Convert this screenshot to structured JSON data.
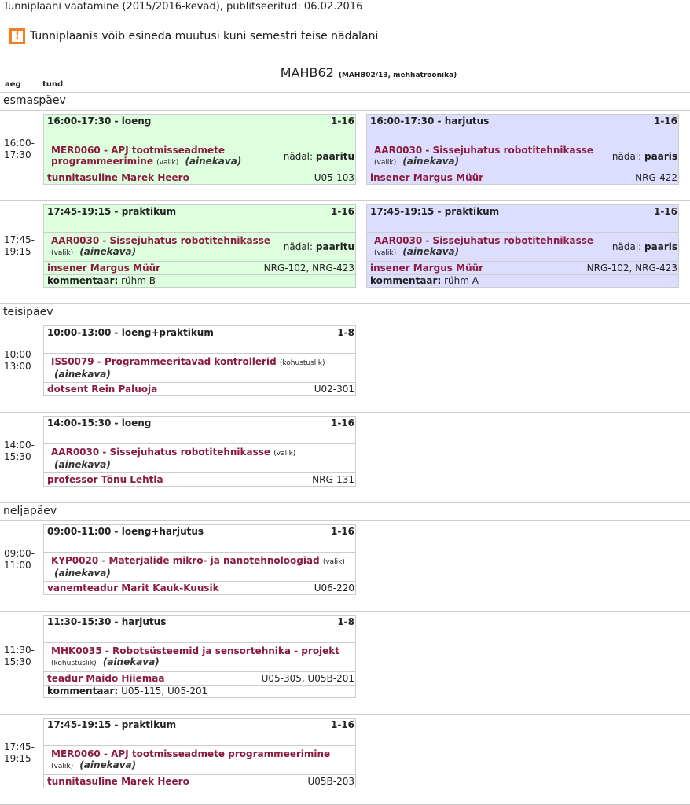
{
  "page_title": "Tunniplaani vaatamine (2015/2016-kevad), publitseeritud: 06.02.2016",
  "warning": {
    "icon": "exclamation-icon",
    "text": "Tunniplaanis võib esineda muutusi kuni semestri teise nädalani"
  },
  "group": {
    "code": "MAHB62",
    "detail": "(MAHB02/13, mehhatroonika)"
  },
  "columns": {
    "time": "aeg",
    "lesson": "tund"
  },
  "colors": {
    "green": "#ddffdd",
    "blue": "#ddddff",
    "link": "#8b1a3f",
    "warning": "#f57c1f"
  },
  "days": [
    {
      "name": "esmaspäev",
      "slots": [
        {
          "time": "16:00-17:30",
          "cards": [
            {
              "color": "green",
              "header": "16:00-17:30 -  loeng",
              "weeks": "1-16",
              "course": "MER0060 - APJ tootmisseadmete programmeerimine",
              "note": "(valik)",
              "aine": "(ainekava)",
              "week_label": "nädal:",
              "week_value": "paaritu",
              "teacher": "tunnitasuline Marek Heero",
              "rooms": "U05-103"
            },
            {
              "color": "blue",
              "header": "16:00-17:30 -  harjutus",
              "weeks": "1-16",
              "course": "AAR0030 - Sissejuhatus robotitehnikasse",
              "note": "(valik)",
              "aine": "(ainekava)",
              "week_label": "nädal:",
              "week_value": "paaris",
              "teacher": "insener Margus Müür",
              "rooms": "NRG-422"
            }
          ]
        },
        {
          "time": "17:45-19:15",
          "cards": [
            {
              "color": "green",
              "header": "17:45-19:15 -  praktikum",
              "weeks": "1-16",
              "course": "AAR0030 - Sissejuhatus robotitehnikasse",
              "note": "(valik)",
              "aine": "(ainekava)",
              "week_label": "nädal:",
              "week_value": "paaritu",
              "teacher": "insener Margus Müür",
              "rooms": "NRG-102,  NRG-423",
              "comment_label": "kommentaar:",
              "comment": "rühm B"
            },
            {
              "color": "blue",
              "header": "17:45-19:15 -  praktikum",
              "weeks": "1-16",
              "course": "AAR0030 - Sissejuhatus robotitehnikasse",
              "note": "(valik)",
              "aine": "(ainekava)",
              "week_label": "nädal:",
              "week_value": "paaris",
              "teacher": "insener Margus Müür",
              "rooms": "NRG-102,  NRG-423",
              "comment_label": "kommentaar:",
              "comment": "rühm A"
            }
          ]
        }
      ]
    },
    {
      "name": "teisipäev",
      "slots": [
        {
          "time": "10:00-13:00",
          "cards": [
            {
              "color": "white",
              "header": "10:00-13:00 -  loeng+praktikum",
              "weeks": "1-8",
              "course": "ISS0079 - Programmeeritavad kontrollerid",
              "note": "(kohustuslik)",
              "aine": "(ainekava)",
              "teacher": "dotsent Rein Paluoja",
              "rooms": "U02-301"
            }
          ]
        },
        {
          "time": "14:00-15:30",
          "cards": [
            {
              "color": "white",
              "header": "14:00-15:30 -  loeng",
              "weeks": "1-16",
              "course": "AAR0030 - Sissejuhatus robotitehnikasse",
              "note": "(valik)",
              "aine": "(ainekava)",
              "teacher": "professor Tõnu Lehtla",
              "rooms": "NRG-131"
            }
          ]
        }
      ]
    },
    {
      "name": "neljapäev",
      "slots": [
        {
          "time": "09:00-11:00",
          "cards": [
            {
              "color": "white",
              "header": "09:00-11:00 -  loeng+harjutus",
              "weeks": "1-16",
              "course": "KYP0020 - Materjalide mikro- ja nanotehnoloogiad",
              "note": "(valik)",
              "aine": "(ainekava)",
              "teacher": "vanemteadur Marit Kauk-Kuusik",
              "rooms": "U06-220"
            }
          ]
        },
        {
          "time": "11:30-15:30",
          "cards": [
            {
              "color": "white",
              "header": "11:30-15:30 -  harjutus",
              "weeks": "1-8",
              "course": "MHK0035 - Robotsüsteemid ja sensortehnika - projekt",
              "note": "(kohustuslik)",
              "aine": "(ainekava)",
              "teacher": "teadur Maido Hiiemaa",
              "rooms": "U05-305,  U05B-201",
              "comment_label": "kommentaar:",
              "comment": "U05-115, U05-201"
            }
          ]
        },
        {
          "time": "17:45-19:15",
          "cards": [
            {
              "color": "white",
              "header": "17:45-19:15 -  praktikum",
              "weeks": "1-16",
              "course": "MER0060 - APJ tootmisseadmete programmeerimine",
              "note": "(valik)",
              "aine": "(ainekava)",
              "teacher": "tunnitasuline Marek Heero",
              "rooms": "U05B-203"
            }
          ]
        }
      ]
    }
  ]
}
